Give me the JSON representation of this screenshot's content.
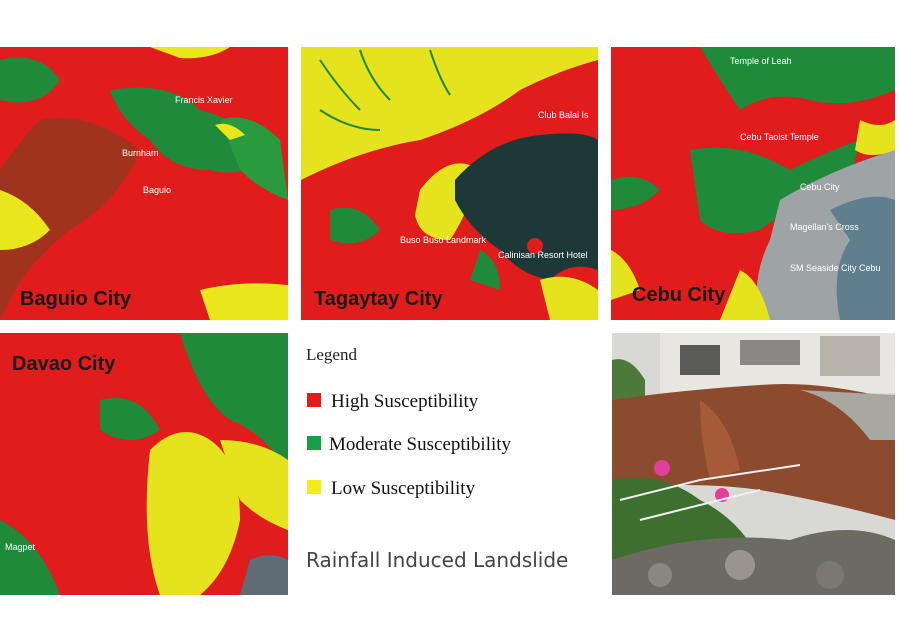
{
  "panels": [
    {
      "label": "Baguio City",
      "places": [
        "Burnham",
        "Baguio",
        "Francis Xavier"
      ]
    },
    {
      "label": "Tagaytay City",
      "places": [
        "Club Balai Is",
        "Calinisan Resort Hotel",
        "Buso Buso Landmark"
      ]
    },
    {
      "label": "Cebu City",
      "places": [
        "Cebu Taoist Temple",
        "Cebu City",
        "Magellan's Cross",
        "SM Seaside City Cebu",
        "Temple of Leah"
      ]
    },
    {
      "label": "Davao City",
      "places": [
        "Magpet"
      ]
    }
  ],
  "legend": {
    "title": "Legend",
    "items": [
      {
        "label": "High Susceptibility",
        "color": "#e01c1c"
      },
      {
        "label": "Moderate Susceptibility",
        "color": "#18a048"
      },
      {
        "label": "Low Susceptibility",
        "color": "#f2ee14"
      }
    ]
  },
  "caption": "Rainfall Induced Landslide"
}
